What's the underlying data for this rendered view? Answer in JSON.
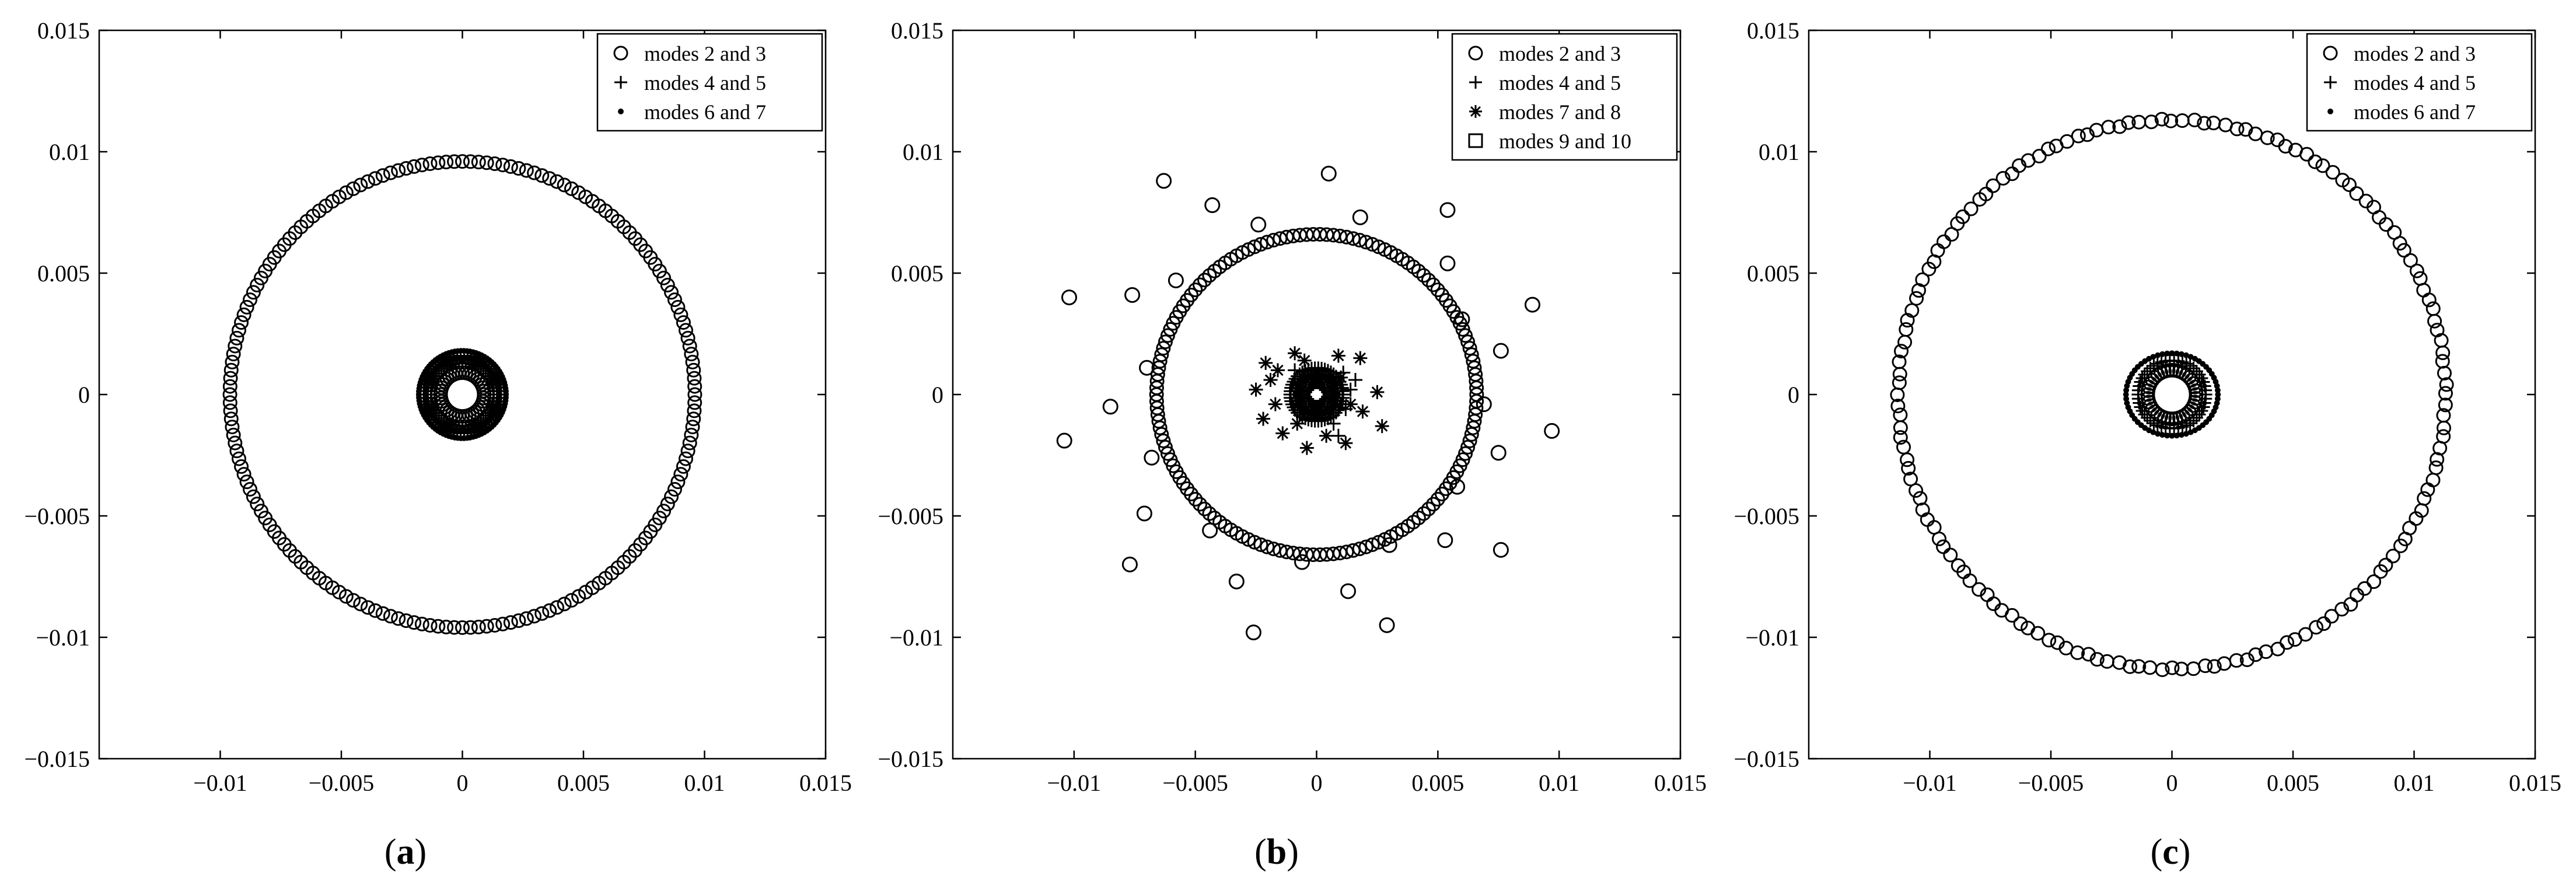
{
  "figure": {
    "panels": [
      {
        "caption_open": "(",
        "caption_letter": "a",
        "caption_close": ")",
        "chart_data": {
          "type": "scatter",
          "title": "",
          "xlabel": "",
          "ylabel": "",
          "xlim": [
            -0.015,
            0.015
          ],
          "ylim": [
            -0.015,
            0.015
          ],
          "xticks": [
            -0.01,
            -0.005,
            0,
            0.005,
            0.01,
            0.015
          ],
          "xtick_labels": [
            "−0.01",
            "−0.005",
            "0",
            "0.005",
            "0.01",
            "0.015"
          ],
          "yticks": [
            -0.015,
            -0.01,
            -0.005,
            0,
            0.005,
            0.01,
            0.015
          ],
          "ytick_labels": [
            "−0.015",
            "−0.01",
            "−0.005",
            "0",
            "0.005",
            "0.01",
            "0.015"
          ],
          "grid": false,
          "legend_position": "top-right",
          "series": [
            {
              "name": "modes 2 and 3",
              "marker": "circle",
              "rings": [
                {
                  "radius": 0.0096,
                  "points": 180
                },
                {
                  "radius": 0.0009,
                  "points": 40
                }
              ]
            },
            {
              "name": "modes 4 and 5",
              "marker": "plus",
              "rings": [
                {
                  "radius": 0.0016,
                  "points": 70
                },
                {
                  "radius": 0.0013,
                  "points": 60
                }
              ]
            },
            {
              "name": "modes 6 and 7",
              "marker": "dot",
              "rings": [
                {
                  "radius": 0.0018,
                  "points": 90
                },
                {
                  "radius": 0.0015,
                  "points": 80
                }
              ]
            }
          ]
        }
      },
      {
        "caption_open": "(",
        "caption_letter": "b",
        "caption_close": ")",
        "chart_data": {
          "type": "scatter",
          "title": "",
          "xlabel": "",
          "ylabel": "",
          "xlim": [
            -0.015,
            0.015
          ],
          "ylim": [
            -0.015,
            0.015
          ],
          "xticks": [
            -0.01,
            -0.005,
            0,
            0.005,
            0.01,
            0.015
          ],
          "xtick_labels": [
            "−0.01",
            "−0.005",
            "0",
            "0.005",
            "0.01",
            "0.015"
          ],
          "yticks": [
            -0.015,
            -0.01,
            -0.005,
            0,
            0.005,
            0.01,
            0.015
          ],
          "ytick_labels": [
            "−0.015",
            "−0.01",
            "−0.005",
            "0",
            "0.005",
            "0.01",
            "0.015"
          ],
          "grid": false,
          "legend_position": "top-right",
          "series": [
            {
              "name": "modes 2 and 3",
              "marker": "circle",
              "rings": [
                {
                  "radius": 0.0066,
                  "points": 150
                }
              ],
              "points": [
                [
                  0.0005,
                  0.0091
                ],
                [
                  -0.0063,
                  0.0088
                ],
                [
                  -0.0043,
                  0.0078
                ],
                [
                  -0.0024,
                  0.007
                ],
                [
                  0.0018,
                  0.0073
                ],
                [
                  0.0054,
                  0.0076
                ],
                [
                  0.0054,
                  0.0054
                ],
                [
                  -0.0058,
                  0.0047
                ],
                [
                  -0.0102,
                  0.004
                ],
                [
                  -0.0076,
                  0.0041
                ],
                [
                  0.0089,
                  0.0037
                ],
                [
                  0.006,
                  0.0031
                ],
                [
                  -0.007,
                  0.0011
                ],
                [
                  0.0076,
                  0.0018
                ],
                [
                  -0.0085,
                  -0.0005
                ],
                [
                  0.0069,
                  -0.0004
                ],
                [
                  -0.0104,
                  -0.0019
                ],
                [
                  0.0097,
                  -0.0015
                ],
                [
                  -0.0068,
                  -0.0026
                ],
                [
                  0.0075,
                  -0.0024
                ],
                [
                  0.0058,
                  -0.0038
                ],
                [
                  -0.0071,
                  -0.0049
                ],
                [
                  0.0053,
                  -0.006
                ],
                [
                  -0.0044,
                  -0.0056
                ],
                [
                  0.003,
                  -0.0062
                ],
                [
                  -0.0077,
                  -0.007
                ],
                [
                  0.0076,
                  -0.0064
                ],
                [
                  -0.0033,
                  -0.0077
                ],
                [
                  0.0013,
                  -0.0081
                ],
                [
                  -0.0026,
                  -0.0098
                ],
                [
                  0.0029,
                  -0.0095
                ],
                [
                  -0.0006,
                  -0.0069
                ]
              ]
            },
            {
              "name": "modes 4 and 5",
              "marker": "plus",
              "rings": [
                {
                  "radius": 0.0011,
                  "points": 50
                }
              ],
              "points": [
                [
                  0.0011,
                  0.0009
                ],
                [
                  0.0012,
                  -0.0006
                ],
                [
                  0.0014,
                  0.0002
                ],
                [
                  0.0007,
                  -0.0012
                ],
                [
                  -0.0009,
                  0.001
                ],
                [
                  0.0016,
                  0.0006
                ],
                [
                  0.0009,
                  -0.0017
                ]
              ]
            },
            {
              "name": "modes 7 and 8",
              "marker": "asterisk",
              "rings": [
                {
                  "radius": 0.0008,
                  "points": 40
                }
              ],
              "points": [
                [
                  -0.0021,
                  0.0013
                ],
                [
                  -0.0019,
                  0.0006
                ],
                [
                  -0.0025,
                  0.0002
                ],
                [
                  -0.0017,
                  -0.0004
                ],
                [
                  -0.0022,
                  -0.001
                ],
                [
                  -0.0014,
                  -0.0016
                ],
                [
                  -0.0009,
                  0.0017
                ],
                [
                  0.0009,
                  0.0016
                ],
                [
                  0.0018,
                  0.0015
                ],
                [
                  0.0025,
                  0.0001
                ],
                [
                  0.0027,
                  -0.0013
                ],
                [
                  0.0019,
                  -0.0007
                ],
                [
                  0.0012,
                  -0.002
                ],
                [
                  -0.0004,
                  -0.0022
                ],
                [
                  0.0004,
                  -0.0017
                ],
                [
                  -0.0005,
                  0.0014
                ],
                [
                  0.0014,
                  -0.0004
                ],
                [
                  -0.0016,
                  0.001
                ],
                [
                  0.001,
                  0.0007
                ],
                [
                  -0.0008,
                  -0.0012
                ]
              ]
            },
            {
              "name": "modes 9 and 10",
              "marker": "square",
              "rings": [
                {
                  "radius": 0.0006,
                  "points": 30
                }
              ],
              "points": []
            }
          ]
        }
      },
      {
        "caption_open": "(",
        "caption_letter": "c",
        "caption_close": ")",
        "chart_data": {
          "type": "scatter",
          "title": "",
          "xlabel": "",
          "ylabel": "",
          "xlim": [
            -0.015,
            0.015
          ],
          "ylim": [
            -0.015,
            0.015
          ],
          "xticks": [
            -0.01,
            -0.005,
            0,
            0.005,
            0.01,
            0.015
          ],
          "xtick_labels": [
            "−0.01",
            "−0.005",
            "0",
            "0.005",
            "0.01",
            "0.015"
          ],
          "yticks": [
            -0.015,
            -0.01,
            -0.005,
            0,
            0.005,
            0.01,
            0.015
          ],
          "ytick_labels": [
            "−0.015",
            "−0.01",
            "−0.005",
            "0",
            "0.005",
            "0.01",
            "0.015"
          ],
          "grid": false,
          "legend_position": "top-right",
          "series": [
            {
              "name": "modes 2 and 3",
              "marker": "circle",
              "rings": [
                {
                  "radius": 0.0113,
                  "points": 160,
                  "jitter": 5e-05
                },
                {
                  "radius": 0.001,
                  "points": 40
                }
              ]
            },
            {
              "name": "modes 4 and 5",
              "marker": "plus",
              "rings": [
                {
                  "radius": 0.0014,
                  "points": 50
                }
              ]
            },
            {
              "name": "modes 6 and 7",
              "marker": "dot",
              "rings": [
                {
                  "radius": 0.0018,
                  "points": 60,
                  "rx": 0.0019,
                  "ry": 0.0017
                }
              ]
            }
          ]
        }
      }
    ]
  }
}
